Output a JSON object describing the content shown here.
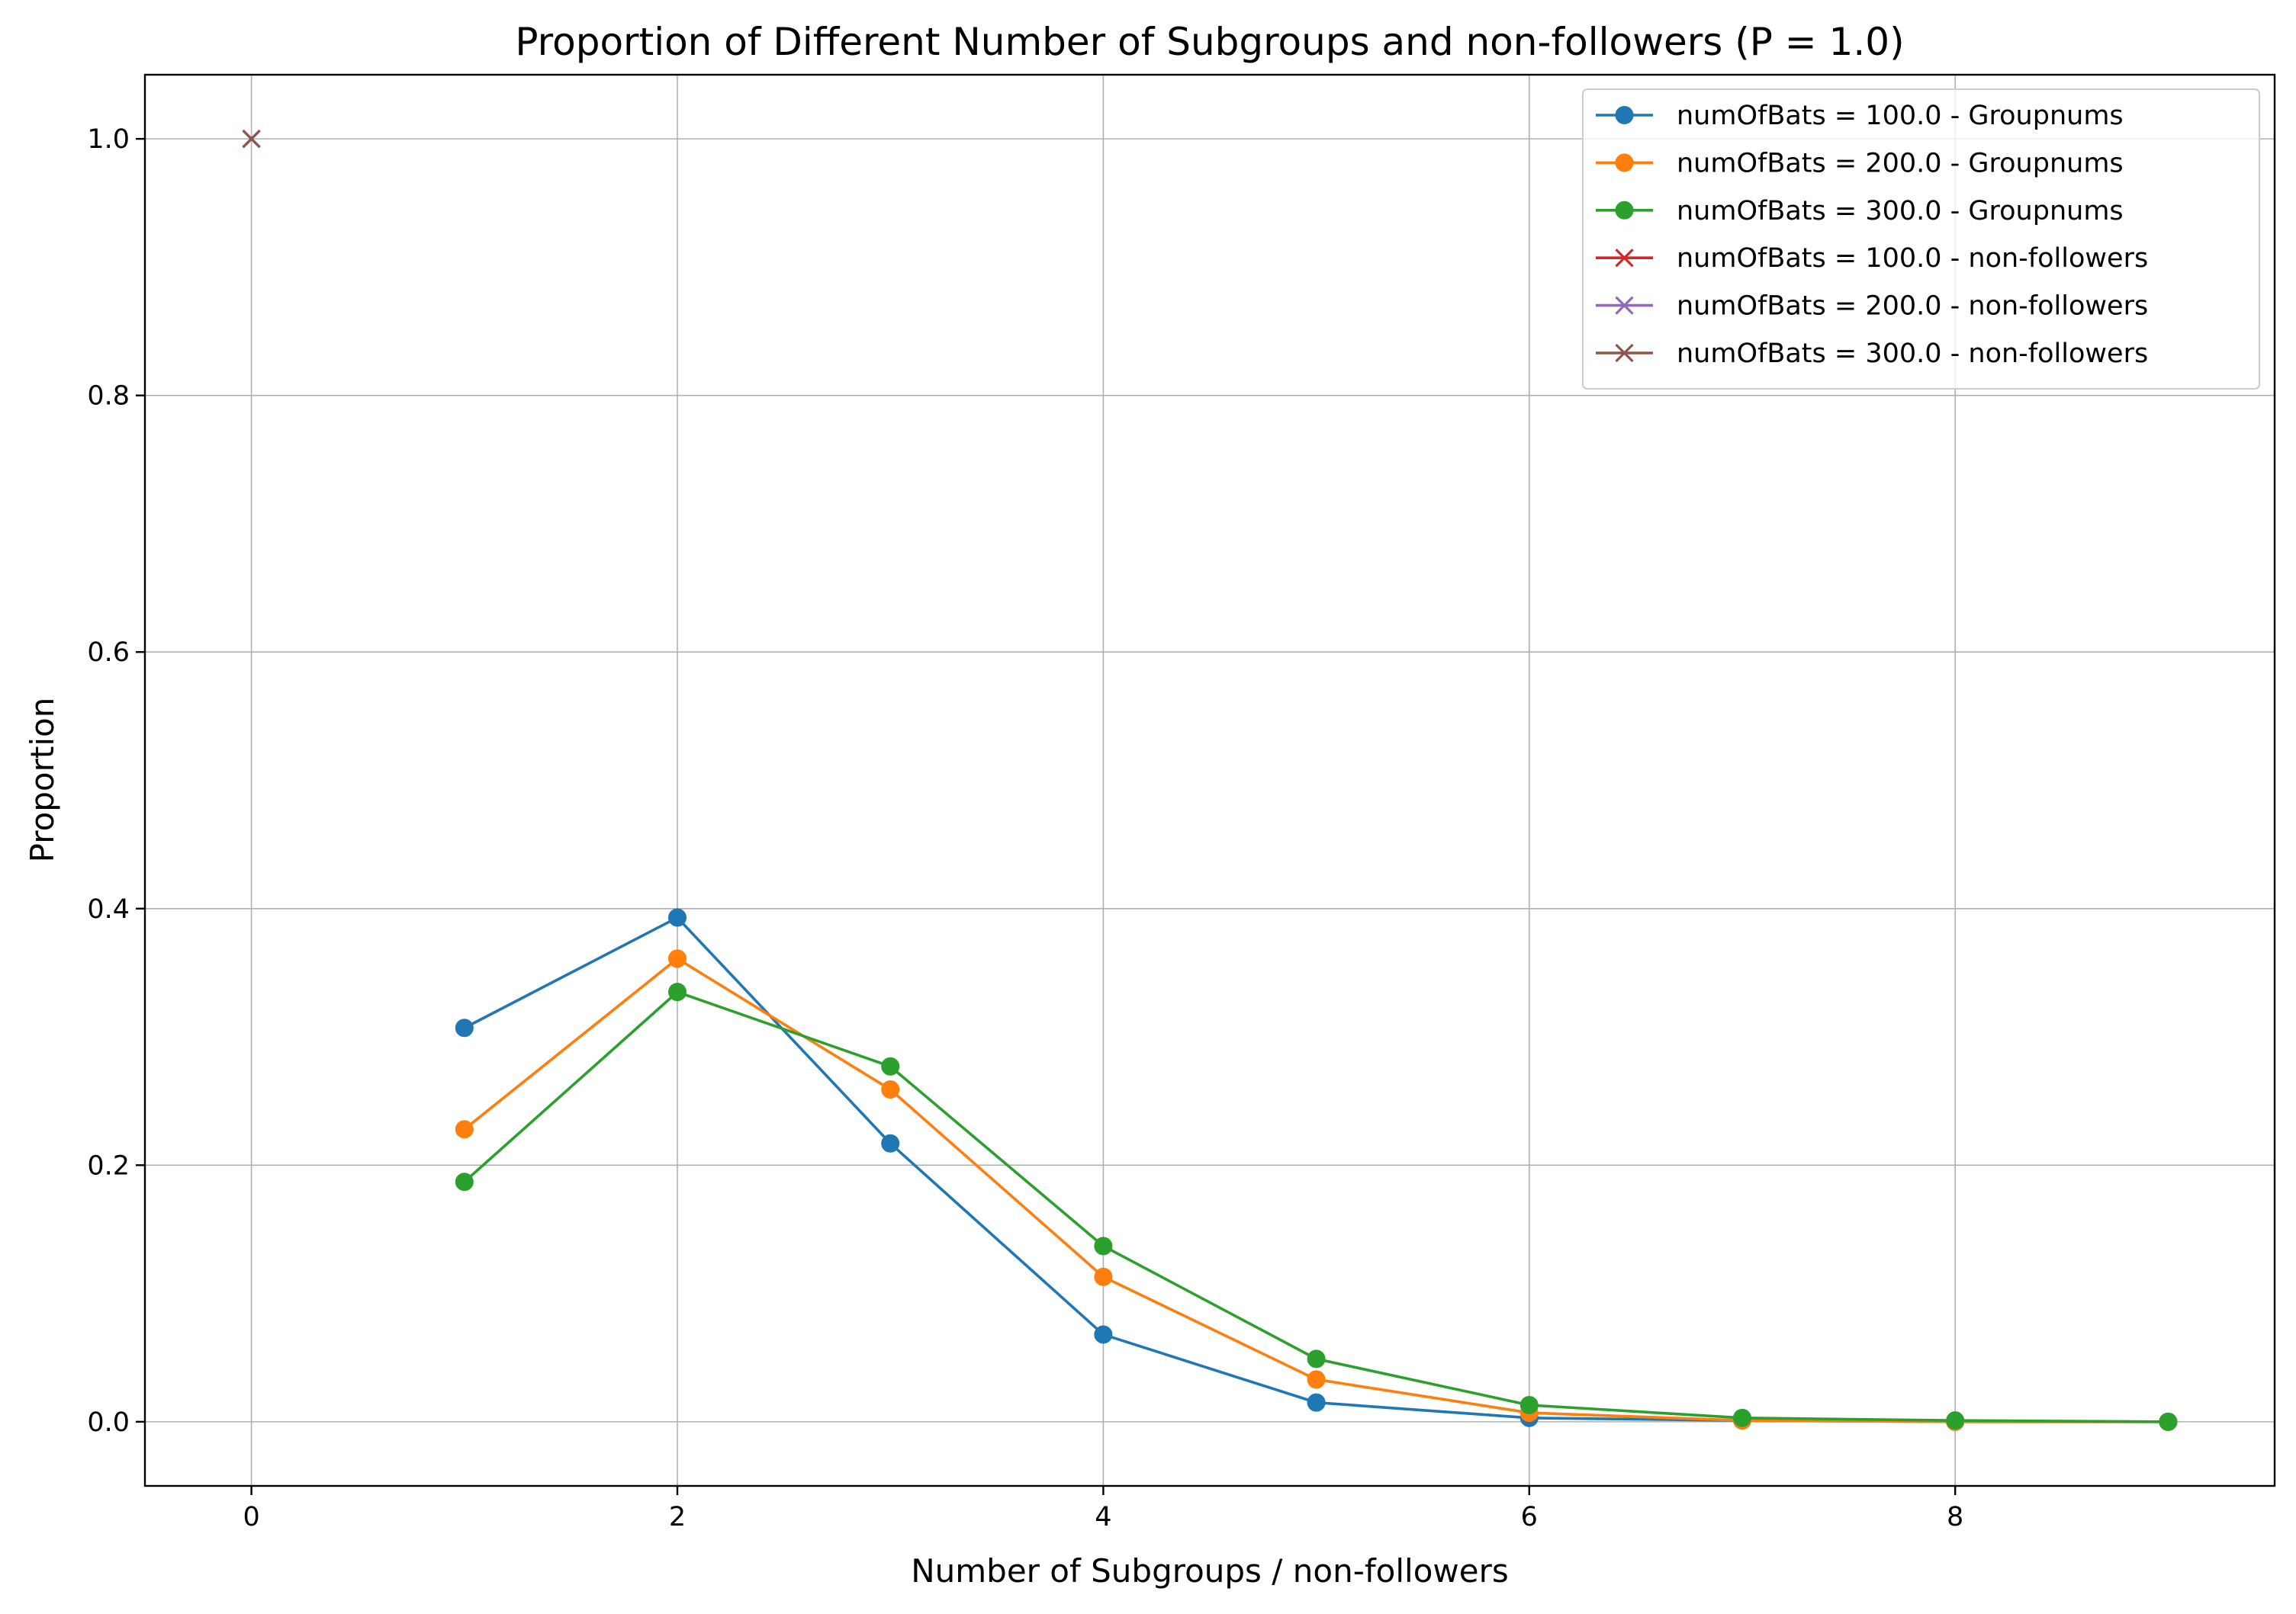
{
  "chart_data": {
    "type": "line",
    "title": "Proportion of Different Number of Subgroups and non-followers (P = 1.0)",
    "xlabel": "Number of Subgroups / non-followers",
    "ylabel": "Proportion",
    "xlim": [
      -0.5,
      9.5
    ],
    "ylim": [
      -0.05,
      1.05
    ],
    "xticks": [
      0,
      2,
      4,
      6,
      8
    ],
    "yticks": [
      0.0,
      0.2,
      0.4,
      0.6,
      0.8,
      1.0
    ],
    "xtick_labels": [
      "0",
      "2",
      "4",
      "6",
      "8"
    ],
    "ytick_labels": [
      "0.0",
      "0.2",
      "0.4",
      "0.6",
      "0.8",
      "1.0"
    ],
    "grid": true,
    "legend_position": "top-right",
    "series": [
      {
        "name": "numOfBats = 100.0 - Groupnums",
        "color": "#1f77b4",
        "marker": "circle",
        "x": [
          1,
          2,
          3,
          4,
          5,
          6,
          7,
          8,
          9
        ],
        "y": [
          0.307,
          0.393,
          0.217,
          0.068,
          0.015,
          0.003,
          0.001,
          0.0,
          0.0
        ]
      },
      {
        "name": "numOfBats = 200.0 - Groupnums",
        "color": "#ff7f0e",
        "marker": "circle",
        "x": [
          1,
          2,
          3,
          4,
          5,
          6,
          7,
          8,
          9
        ],
        "y": [
          0.228,
          0.361,
          0.259,
          0.113,
          0.033,
          0.007,
          0.001,
          0.0,
          0.0
        ]
      },
      {
        "name": "numOfBats = 300.0 - Groupnums",
        "color": "#2ca02c",
        "marker": "circle",
        "x": [
          1,
          2,
          3,
          4,
          5,
          6,
          7,
          8,
          9
        ],
        "y": [
          0.187,
          0.335,
          0.277,
          0.137,
          0.049,
          0.013,
          0.003,
          0.001,
          0.0
        ]
      },
      {
        "name": "numOfBats = 100.0 - non-followers",
        "color": "#d62728",
        "marker": "x",
        "x": [
          0
        ],
        "y": [
          1.0
        ]
      },
      {
        "name": "numOfBats = 200.0 - non-followers",
        "color": "#9467bd",
        "marker": "x",
        "x": [
          0
        ],
        "y": [
          1.0
        ]
      },
      {
        "name": "numOfBats = 300.0 - non-followers",
        "color": "#8c564b",
        "marker": "x",
        "x": [
          0
        ],
        "y": [
          1.0
        ]
      }
    ]
  }
}
